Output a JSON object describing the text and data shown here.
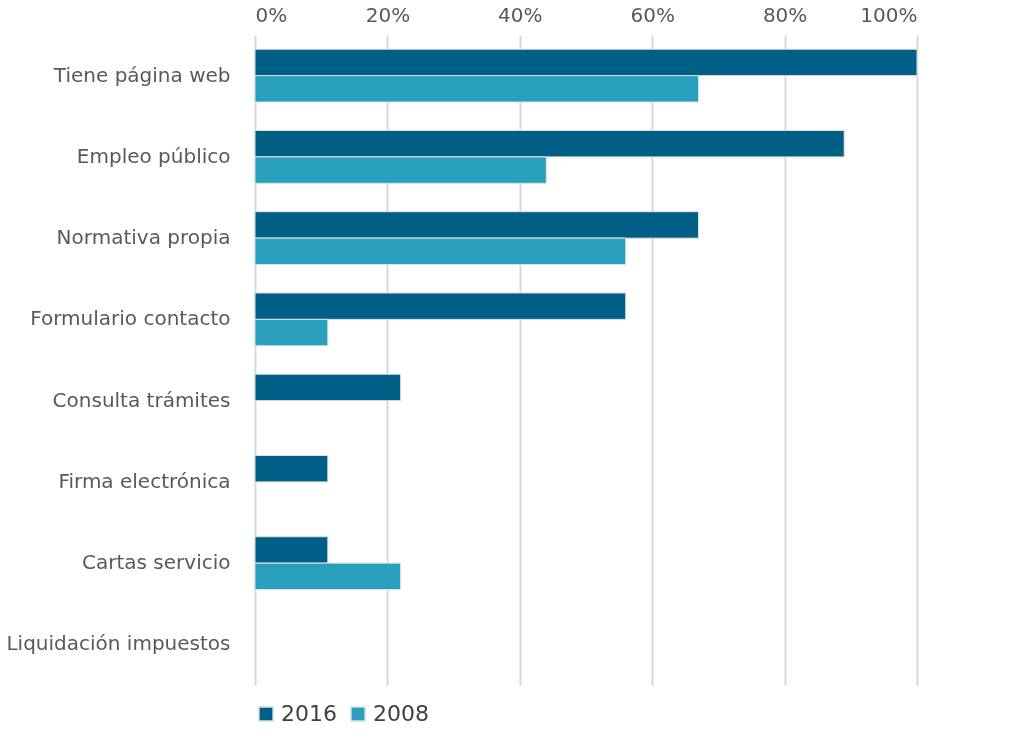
{
  "chart_data": {
    "type": "bar",
    "orientation": "horizontal",
    "categories": [
      "Tiene página web",
      "Empleo público",
      "Normativa propia",
      "Formulario contacto",
      "Consulta trámites",
      "Firma electrónica",
      "Cartas servicio",
      "Liquidación impuestos"
    ],
    "series": [
      {
        "name": "2016",
        "color": "#005f87",
        "values": [
          100,
          89,
          67,
          56,
          22,
          11,
          11,
          0
        ]
      },
      {
        "name": "2008",
        "color": "#279fbd",
        "values": [
          67,
          44,
          56,
          11,
          0,
          0,
          22,
          0
        ]
      }
    ],
    "xlim": [
      0,
      100
    ],
    "xticks": [
      {
        "value": 0,
        "label": "0%"
      },
      {
        "value": 20,
        "label": "20%"
      },
      {
        "value": 40,
        "label": "40%"
      },
      {
        "value": 60,
        "label": "60%"
      },
      {
        "value": 80,
        "label": "80%"
      },
      {
        "value": 100,
        "label": "100%"
      }
    ],
    "grid": "x",
    "legend": "bottom"
  }
}
